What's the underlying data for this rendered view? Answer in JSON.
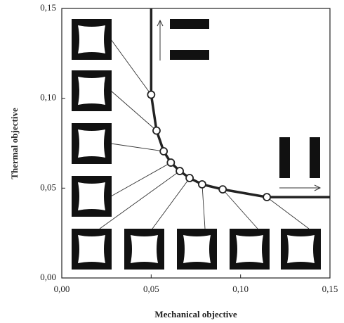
{
  "chart_data": {
    "type": "line",
    "x_label": "Mechanical objective",
    "y_label": "Thermal objective",
    "xlim": [
      0,
      0.15
    ],
    "ylim": [
      0,
      0.15
    ],
    "xticks": [
      {
        "value": 0,
        "label": "0,00"
      },
      {
        "value": 0.05,
        "label": "0,05"
      },
      {
        "value": 0.1,
        "label": "0,10"
      },
      {
        "value": 0.15,
        "label": "0,15"
      }
    ],
    "yticks": [
      {
        "value": 0,
        "label": "0,00"
      },
      {
        "value": 0.05,
        "label": "0,05"
      },
      {
        "value": 0.1,
        "label": "0,10"
      },
      {
        "value": 0.15,
        "label": "0,15"
      }
    ],
    "color": "#222222",
    "line": {
      "x": [
        0.05,
        0.05,
        0.053,
        0.057,
        0.061,
        0.066,
        0.0715,
        0.0785,
        0.09,
        0.1147,
        0.15
      ],
      "y": [
        0.15,
        0.102,
        0.082,
        0.0705,
        0.0642,
        0.0595,
        0.0556,
        0.0521,
        0.0493,
        0.045,
        0.045
      ]
    },
    "points": {
      "x": [
        0.05,
        0.053,
        0.057,
        0.061,
        0.066,
        0.0715,
        0.0785,
        0.09,
        0.1147
      ],
      "y": [
        0.102,
        0.082,
        0.0705,
        0.0642,
        0.0595,
        0.0556,
        0.0521,
        0.0493,
        0.045
      ]
    }
  }
}
